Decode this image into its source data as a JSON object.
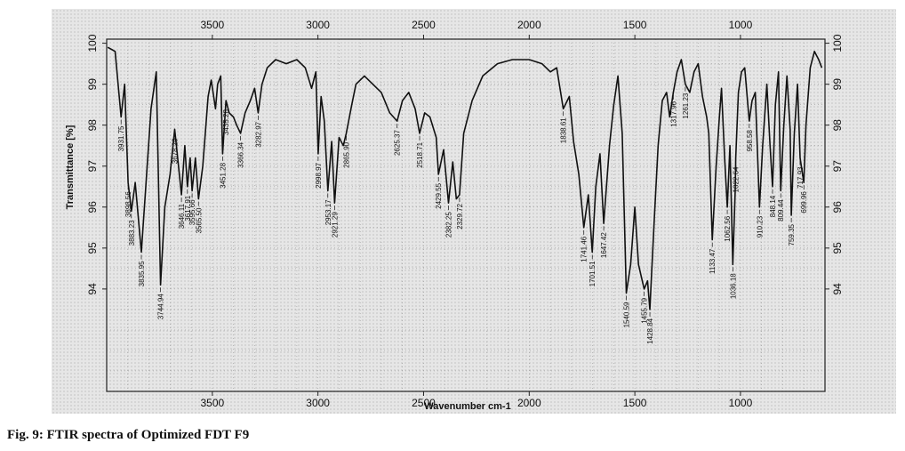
{
  "caption": "Fig. 9: FTIR spectra of Optimized FDT F9",
  "chart_data": {
    "type": "line",
    "title": "",
    "xlabel": "Wavenumber cm-1",
    "ylabel": "Transmittance [%]",
    "xlim": [
      4000,
      600
    ],
    "ylim": [
      91.5,
      100.1
    ],
    "x_ticks": [
      3500,
      3000,
      2500,
      2000,
      1500,
      1000
    ],
    "y_ticks_left": [
      100,
      99,
      98,
      97,
      96,
      95,
      94
    ],
    "y_ticks_right": [
      100,
      99,
      98,
      97,
      96,
      95,
      94
    ],
    "line_color": "#111111",
    "grid": true,
    "series": [
      {
        "values": [
          [
            3995,
            99.9
          ],
          [
            3960,
            99.8
          ],
          [
            3931.75,
            98.2
          ],
          [
            3915,
            99.0
          ],
          [
            3898.56,
            96.6
          ],
          [
            3883.23,
            95.9
          ],
          [
            3865,
            96.6
          ],
          [
            3835.95,
            94.9
          ],
          [
            3815,
            96.5
          ],
          [
            3790,
            98.4
          ],
          [
            3765,
            99.3
          ],
          [
            3744.94,
            94.1
          ],
          [
            3725,
            96.0
          ],
          [
            3700,
            96.8
          ],
          [
            3678.29,
            97.9
          ],
          [
            3660,
            97.0
          ],
          [
            3646.11,
            96.3
          ],
          [
            3630,
            97.5
          ],
          [
            3617.91,
            96.5
          ],
          [
            3605,
            97.2
          ],
          [
            3595.66,
            96.4
          ],
          [
            3580,
            97.2
          ],
          [
            3565.5,
            96.2
          ],
          [
            3545,
            97.0
          ],
          [
            3520,
            98.7
          ],
          [
            3505,
            99.1
          ],
          [
            3485,
            98.4
          ],
          [
            3475,
            99.0
          ],
          [
            3460,
            99.2
          ],
          [
            3451.28,
            97.3
          ],
          [
            3435.28,
            98.6
          ],
          [
            3420,
            98.3
          ],
          [
            3400,
            98.2
          ],
          [
            3385,
            98.0
          ],
          [
            3366.34,
            97.8
          ],
          [
            3345,
            98.3
          ],
          [
            3320,
            98.6
          ],
          [
            3300,
            98.9
          ],
          [
            3282.97,
            98.3
          ],
          [
            3265,
            99.0
          ],
          [
            3240,
            99.4
          ],
          [
            3200,
            99.6
          ],
          [
            3150,
            99.5
          ],
          [
            3100,
            99.6
          ],
          [
            3060,
            99.4
          ],
          [
            3030,
            98.9
          ],
          [
            3010,
            99.3
          ],
          [
            2998.97,
            97.3
          ],
          [
            2985,
            98.7
          ],
          [
            2970,
            98.1
          ],
          [
            2953.17,
            96.4
          ],
          [
            2935,
            97.6
          ],
          [
            2921.29,
            96.1
          ],
          [
            2900,
            97.7
          ],
          [
            2880,
            97.5
          ],
          [
            2865.9,
            97.8
          ],
          [
            2840,
            98.5
          ],
          [
            2820,
            99.0
          ],
          [
            2780,
            99.2
          ],
          [
            2740,
            99.0
          ],
          [
            2700,
            98.8
          ],
          [
            2660,
            98.3
          ],
          [
            2625.37,
            98.1
          ],
          [
            2600,
            98.6
          ],
          [
            2570,
            98.8
          ],
          [
            2540,
            98.4
          ],
          [
            2518.71,
            97.8
          ],
          [
            2495,
            98.3
          ],
          [
            2470,
            98.2
          ],
          [
            2440,
            97.7
          ],
          [
            2429.55,
            96.8
          ],
          [
            2405,
            97.4
          ],
          [
            2382.25,
            96.1
          ],
          [
            2362,
            97.1
          ],
          [
            2345,
            96.2
          ],
          [
            2329.72,
            96.3
          ],
          [
            2310,
            97.8
          ],
          [
            2270,
            98.6
          ],
          [
            2220,
            99.2
          ],
          [
            2150,
            99.5
          ],
          [
            2080,
            99.6
          ],
          [
            2000,
            99.6
          ],
          [
            1940,
            99.5
          ],
          [
            1900,
            99.3
          ],
          [
            1870,
            99.4
          ],
          [
            1838.61,
            98.4
          ],
          [
            1810,
            98.7
          ],
          [
            1790,
            97.6
          ],
          [
            1765,
            96.8
          ],
          [
            1741.46,
            95.5
          ],
          [
            1720,
            96.3
          ],
          [
            1701.51,
            94.9
          ],
          [
            1685,
            96.5
          ],
          [
            1665,
            97.3
          ],
          [
            1647.42,
            95.6
          ],
          [
            1620,
            97.5
          ],
          [
            1600,
            98.5
          ],
          [
            1580,
            99.2
          ],
          [
            1560,
            97.8
          ],
          [
            1540.59,
            93.9
          ],
          [
            1520,
            94.6
          ],
          [
            1500,
            96.0
          ],
          [
            1483,
            94.6
          ],
          [
            1455.79,
            94.0
          ],
          [
            1440,
            94.2
          ],
          [
            1428.84,
            93.5
          ],
          [
            1410,
            95.5
          ],
          [
            1390,
            97.5
          ],
          [
            1370,
            98.6
          ],
          [
            1350,
            98.8
          ],
          [
            1335,
            98.2
          ],
          [
            1317.96,
            98.8
          ],
          [
            1300,
            99.3
          ],
          [
            1280,
            99.6
          ],
          [
            1261.23,
            99.0
          ],
          [
            1240,
            98.8
          ],
          [
            1220,
            99.3
          ],
          [
            1200,
            99.5
          ],
          [
            1180,
            98.7
          ],
          [
            1160,
            98.2
          ],
          [
            1150,
            97.8
          ],
          [
            1133.47,
            95.2
          ],
          [
            1115,
            97.0
          ],
          [
            1100,
            98.2
          ],
          [
            1090,
            98.9
          ],
          [
            1075,
            97.2
          ],
          [
            1062.56,
            96.0
          ],
          [
            1050,
            97.5
          ],
          [
            1036.18,
            94.6
          ],
          [
            1025,
            96.4
          ],
          [
            1022.64,
            97.2
          ],
          [
            1010,
            98.8
          ],
          [
            995,
            99.3
          ],
          [
            980,
            99.4
          ],
          [
            958.58,
            98.1
          ],
          [
            945,
            98.6
          ],
          [
            930,
            98.8
          ],
          [
            910.23,
            96.0
          ],
          [
            895,
            97.5
          ],
          [
            875,
            99.0
          ],
          [
            860,
            97.5
          ],
          [
            848.14,
            96.5
          ],
          [
            835,
            98.5
          ],
          [
            820,
            99.3
          ],
          [
            809.44,
            96.4
          ],
          [
            795,
            98.0
          ],
          [
            780,
            99.2
          ],
          [
            765,
            97.9
          ],
          [
            759.35,
            95.8
          ],
          [
            745,
            97.8
          ],
          [
            730,
            99.0
          ],
          [
            717.93,
            97.2
          ],
          [
            699.96,
            96.6
          ],
          [
            690,
            98.0
          ],
          [
            670,
            99.4
          ],
          [
            650,
            99.8
          ],
          [
            630,
            99.6
          ],
          [
            615,
            99.4
          ]
        ]
      }
    ],
    "peak_labels": [
      {
        "x": 3931.75,
        "y": 98.2,
        "text": "3931.75"
      },
      {
        "x": 3898.56,
        "y": 96.6,
        "text": "3898.56"
      },
      {
        "x": 3883.23,
        "y": 95.9,
        "text": "3883.23"
      },
      {
        "x": 3835.95,
        "y": 94.9,
        "text": "3835.95"
      },
      {
        "x": 3744.94,
        "y": 94.1,
        "text": "3744.94"
      },
      {
        "x": 3678.29,
        "y": 97.9,
        "text": "3678.29"
      },
      {
        "x": 3646.11,
        "y": 96.3,
        "text": "3646.11"
      },
      {
        "x": 3617.91,
        "y": 96.5,
        "text": "3617.91"
      },
      {
        "x": 3595.66,
        "y": 96.4,
        "text": "3595.66"
      },
      {
        "x": 3565.5,
        "y": 96.2,
        "text": "3565.50"
      },
      {
        "x": 3451.28,
        "y": 97.3,
        "text": "3451.28"
      },
      {
        "x": 3435.28,
        "y": 98.6,
        "text": "3435.28"
      },
      {
        "x": 3366.34,
        "y": 97.8,
        "text": "3366.34"
      },
      {
        "x": 3282.97,
        "y": 98.3,
        "text": "3282.97"
      },
      {
        "x": 2998.97,
        "y": 97.3,
        "text": "2998.97"
      },
      {
        "x": 2953.17,
        "y": 96.4,
        "text": "2953.17"
      },
      {
        "x": 2921.29,
        "y": 96.1,
        "text": "2921.29"
      },
      {
        "x": 2865.9,
        "y": 97.8,
        "text": "2865.90"
      },
      {
        "x": 2625.37,
        "y": 98.1,
        "text": "2625.37"
      },
      {
        "x": 2518.71,
        "y": 97.8,
        "text": "2518.71"
      },
      {
        "x": 2429.55,
        "y": 96.8,
        "text": "2429.55"
      },
      {
        "x": 2382.25,
        "y": 96.1,
        "text": "2382.25"
      },
      {
        "x": 2329.72,
        "y": 96.3,
        "text": "2329.72"
      },
      {
        "x": 1838.61,
        "y": 98.4,
        "text": "1838.61"
      },
      {
        "x": 1741.46,
        "y": 95.5,
        "text": "1741.46"
      },
      {
        "x": 1701.51,
        "y": 94.9,
        "text": "1701.51"
      },
      {
        "x": 1647.42,
        "y": 95.6,
        "text": "1647.42"
      },
      {
        "x": 1540.59,
        "y": 93.9,
        "text": "1540.59"
      },
      {
        "x": 1455.79,
        "y": 94.0,
        "text": "1455.79"
      },
      {
        "x": 1428.84,
        "y": 93.5,
        "text": "1428.84"
      },
      {
        "x": 1317.96,
        "y": 98.8,
        "text": "1317.96"
      },
      {
        "x": 1261.23,
        "y": 99.0,
        "text": "1261.23"
      },
      {
        "x": 1133.47,
        "y": 95.2,
        "text": "1133.47"
      },
      {
        "x": 1062.56,
        "y": 96.0,
        "text": "1062.56"
      },
      {
        "x": 1036.18,
        "y": 94.6,
        "text": "1036.18"
      },
      {
        "x": 1022.64,
        "y": 97.2,
        "text": "1022.64"
      },
      {
        "x": 958.58,
        "y": 98.1,
        "text": "958.58"
      },
      {
        "x": 910.23,
        "y": 96.0,
        "text": "910.23"
      },
      {
        "x": 848.14,
        "y": 96.5,
        "text": "848.14"
      },
      {
        "x": 809.44,
        "y": 96.4,
        "text": "809.44"
      },
      {
        "x": 759.35,
        "y": 95.8,
        "text": "759.35"
      },
      {
        "x": 717.93,
        "y": 97.2,
        "text": "717.93"
      },
      {
        "x": 699.96,
        "y": 96.6,
        "text": "699.96"
      }
    ]
  }
}
